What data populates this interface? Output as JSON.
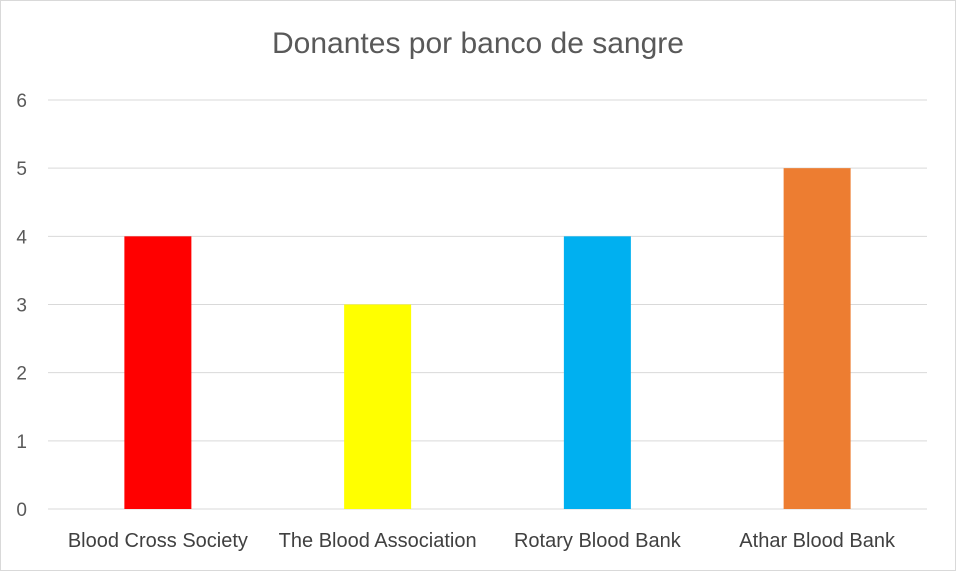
{
  "chart_data": {
    "type": "bar",
    "title": "Donantes por banco de sangre",
    "categories": [
      "Blood Cross Society",
      "The Blood Association",
      "Rotary Blood Bank",
      "Athar Blood Bank"
    ],
    "values": [
      4,
      3,
      4,
      5
    ],
    "colors": [
      "#ff0000",
      "#ffff00",
      "#00b0f0",
      "#ed7d31"
    ],
    "ylim": [
      0,
      6
    ],
    "yticks": [
      "0",
      "1",
      "2",
      "3",
      "4",
      "5",
      "6"
    ],
    "grid": true,
    "xlabel": "",
    "ylabel": ""
  }
}
